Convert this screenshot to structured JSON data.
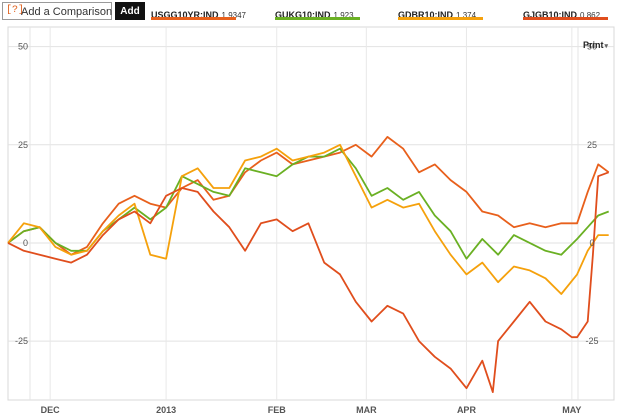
{
  "comparison": {
    "help_label": "[?]",
    "placeholder": "Add a Comparison",
    "add_label": "Add"
  },
  "legend": [
    {
      "symbol": "USGG10YR:IND",
      "value": "1.9347",
      "color": "#e8601c"
    },
    {
      "symbol": "GUKG10:IND",
      "value": "1.923",
      "color": "#6ab023"
    },
    {
      "symbol": "GDBR10:IND",
      "value": "1.374",
      "color": "#f5a10c"
    },
    {
      "symbol": "GJGB10:IND",
      "value": "0.862",
      "color": "#e04e1d"
    }
  ],
  "print_label": "Print",
  "chart_data": {
    "type": "line",
    "title": "",
    "xlabel": "",
    "ylabel": "",
    "ylim": [
      -40,
      55
    ],
    "y_ticks": [
      50,
      25,
      0,
      -25
    ],
    "y_tick_labels": [
      "50",
      "25",
      "0",
      "-25"
    ],
    "x_month_labels": [
      "DEC",
      "2013",
      "FEB",
      "MAR",
      "APR",
      "MAY"
    ],
    "x_month_positions": [
      8,
      30,
      51,
      68,
      87,
      107
    ],
    "x_max": 115,
    "grid": true,
    "legend_position": "top",
    "series": [
      {
        "name": "USGG10YR:IND",
        "color": "#e8601c",
        "x": [
          0,
          3,
          6,
          9,
          12,
          15,
          18,
          21,
          24,
          27,
          30,
          33,
          36,
          39,
          42,
          45,
          48,
          51,
          54,
          57,
          60,
          63,
          66,
          69,
          72,
          75,
          78,
          81,
          84,
          87,
          90,
          93,
          96,
          99,
          102,
          105,
          108,
          110,
          112,
          114
        ],
        "y": [
          0,
          3,
          4,
          0,
          -3,
          -1,
          5,
          10,
          12,
          10,
          9,
          14,
          16,
          11,
          12,
          18,
          21,
          23,
          20,
          21,
          22,
          23,
          25,
          22,
          27,
          24,
          18,
          20,
          16,
          13,
          8,
          7,
          4,
          5,
          4,
          5,
          5,
          13,
          20,
          18
        ]
      },
      {
        "name": "GUKG10:IND",
        "color": "#6ab023",
        "x": [
          0,
          3,
          6,
          9,
          12,
          15,
          18,
          21,
          24,
          27,
          30,
          33,
          36,
          39,
          42,
          45,
          48,
          51,
          54,
          57,
          60,
          63,
          66,
          69,
          72,
          75,
          78,
          81,
          84,
          87,
          90,
          93,
          96,
          99,
          102,
          105,
          108,
          110,
          112,
          114
        ],
        "y": [
          0,
          3,
          4,
          0,
          -2,
          -2,
          3,
          6,
          9,
          6,
          9,
          17,
          15,
          13,
          12,
          19,
          18,
          17,
          20,
          22,
          22,
          24,
          19,
          12,
          14,
          11,
          13,
          7,
          3,
          -4,
          1,
          -3,
          2,
          0,
          -2,
          -3,
          1,
          4,
          7,
          8
        ]
      },
      {
        "name": "GDBR10:IND",
        "color": "#f5a10c",
        "x": [
          0,
          3,
          6,
          9,
          12,
          15,
          18,
          21,
          24,
          27,
          30,
          33,
          36,
          39,
          42,
          45,
          48,
          51,
          54,
          57,
          60,
          63,
          66,
          69,
          72,
          75,
          78,
          81,
          84,
          87,
          90,
          93,
          96,
          99,
          102,
          105,
          108,
          110,
          112,
          114
        ],
        "y": [
          0,
          5,
          4,
          -1,
          -3,
          -2,
          3,
          7,
          10,
          -3,
          -4,
          17,
          19,
          14,
          14,
          21,
          22,
          24,
          21,
          22,
          23,
          25,
          17,
          9,
          11,
          9,
          10,
          3,
          -3,
          -8,
          -5,
          -10,
          -6,
          -7,
          -9,
          -13,
          -8,
          -2,
          2,
          2
        ]
      },
      {
        "name": "GJGB10:IND",
        "color": "#e04e1d",
        "x": [
          0,
          3,
          6,
          9,
          12,
          15,
          18,
          21,
          24,
          27,
          30,
          33,
          36,
          39,
          42,
          45,
          48,
          51,
          54,
          57,
          60,
          63,
          66,
          69,
          72,
          75,
          78,
          81,
          84,
          87,
          90,
          92,
          93,
          96,
          99,
          102,
          105,
          107,
          108,
          110,
          111,
          112,
          114
        ],
        "y": [
          0,
          -2,
          -3,
          -4,
          -5,
          -3,
          2,
          6,
          8,
          5,
          12,
          14,
          13,
          8,
          4,
          -2,
          5,
          6,
          3,
          5,
          -5,
          -8,
          -15,
          -20,
          -16,
          -18,
          -25,
          -29,
          -32,
          -37,
          -30,
          -38,
          -25,
          -20,
          -15,
          -20,
          -22,
          -24,
          -24,
          -20,
          -3,
          17,
          18
        ]
      }
    ]
  }
}
